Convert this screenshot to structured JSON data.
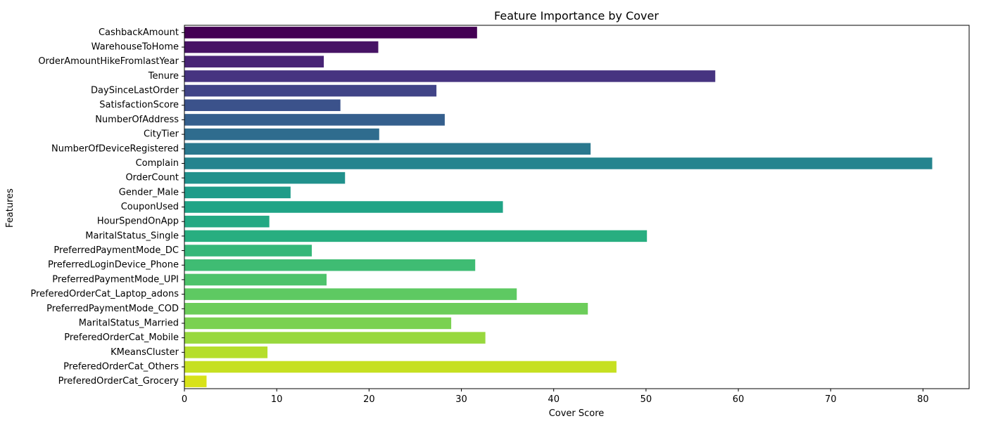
{
  "chart_data": {
    "type": "bar",
    "orientation": "horizontal",
    "title": "Feature Importance by Cover",
    "xlabel": "Cover Score",
    "ylabel": "Features",
    "xlim": [
      0,
      85
    ],
    "xticks": [
      0,
      10,
      20,
      30,
      40,
      50,
      60,
      70,
      80
    ],
    "grid": false,
    "palette": "viridis",
    "categories": [
      "CashbackAmount",
      "WarehouseToHome",
      "OrderAmountHikeFromlastYear",
      "Tenure",
      "DaySinceLastOrder",
      "SatisfactionScore",
      "NumberOfAddress",
      "CityTier",
      "NumberOfDeviceRegistered",
      "Complain",
      "OrderCount",
      "Gender_Male",
      "CouponUsed",
      "HourSpendOnApp",
      "MaritalStatus_Single",
      "PreferredPaymentMode_DC",
      "PreferredLoginDevice_Phone",
      "PreferredPaymentMode_UPI",
      "PreferedOrderCat_Laptop_adons",
      "PreferredPaymentMode_COD",
      "MaritalStatus_Married",
      "PreferedOrderCat_Mobile",
      "KMeansCluster",
      "PreferedOrderCat_Others",
      "PreferedOrderCat_Grocery"
    ],
    "values": [
      31.7,
      21.0,
      15.1,
      57.5,
      27.3,
      16.9,
      28.2,
      21.1,
      44.0,
      81.0,
      17.4,
      11.5,
      34.5,
      9.2,
      50.1,
      13.8,
      31.5,
      15.4,
      36.0,
      43.7,
      28.9,
      32.6,
      9.0,
      46.8,
      2.4
    ],
    "colors": [
      "#440154",
      "#471365",
      "#482475",
      "#463480",
      "#414487",
      "#3b528b",
      "#355f8d",
      "#2f6c8e",
      "#2a788e",
      "#25848e",
      "#21918c",
      "#1e9c89",
      "#20a486",
      "#23a983",
      "#28ae80",
      "#35b779",
      "#3fbc73",
      "#4ec36b",
      "#5ec962",
      "#6ccd5a",
      "#7ad151",
      "#98d83e",
      "#b5de2b",
      "#c6e021",
      "#d8e219"
    ]
  }
}
